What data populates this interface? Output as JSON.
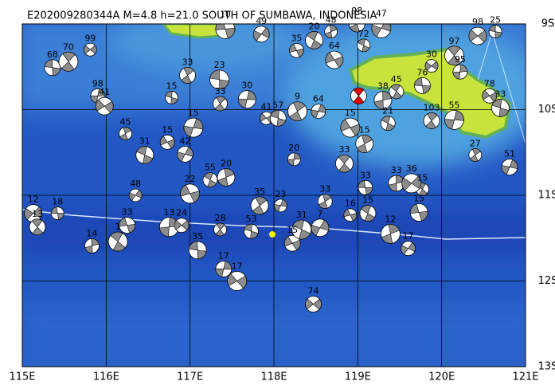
{
  "map": {
    "title": "E202009280344A  M=4.8  h=21.0  SOUTH OF SUMBAWA, INDONESIA",
    "lonlim": [
      115,
      121
    ],
    "latlim": [
      -9,
      -13
    ],
    "lon_ticks": [
      {
        "value": 115,
        "label": "115E"
      },
      {
        "value": 116,
        "label": "116E"
      },
      {
        "value": 117,
        "label": "117E"
      },
      {
        "value": 118,
        "label": "118E"
      },
      {
        "value": 119,
        "label": "119E"
      },
      {
        "value": 120,
        "label": "120E"
      },
      {
        "value": 121,
        "label": "121E"
      }
    ],
    "lat_ticks": [
      {
        "value": -9,
        "label": "9S"
      },
      {
        "value": -10,
        "label": "10S"
      },
      {
        "value": -11,
        "label": "11S"
      },
      {
        "value": -12,
        "label": "12S"
      },
      {
        "value": -13,
        "label": "13S"
      }
    ],
    "main_event": {
      "lon": 119.01,
      "lat": -9.84
    },
    "events": [
      {
        "lon": 115.81,
        "lat": -9.3,
        "depth": "99"
      },
      {
        "lon": 115.36,
        "lat": -9.51,
        "depth": "68"
      },
      {
        "lon": 115.55,
        "lat": -9.44,
        "depth": "70"
      },
      {
        "lon": 115.9,
        "lat": -9.84,
        "depth": "98"
      },
      {
        "lon": 115.98,
        "lat": -9.96,
        "depth": "41"
      },
      {
        "lon": 116.78,
        "lat": -9.86,
        "depth": "15"
      },
      {
        "lon": 116.97,
        "lat": -9.6,
        "depth": "33"
      },
      {
        "lon": 117.04,
        "lat": -10.21,
        "depth": "15"
      },
      {
        "lon": 116.73,
        "lat": -10.38,
        "depth": "15"
      },
      {
        "lon": 116.46,
        "lat": -10.53,
        "depth": "31"
      },
      {
        "lon": 116.23,
        "lat": -10.28,
        "depth": "45"
      },
      {
        "lon": 116.94,
        "lat": -10.52,
        "depth": "42"
      },
      {
        "lon": 117.0,
        "lat": -10.98,
        "depth": "22"
      },
      {
        "lon": 117.24,
        "lat": -10.82,
        "depth": "55"
      },
      {
        "lon": 117.43,
        "lat": -10.79,
        "depth": "20"
      },
      {
        "lon": 116.35,
        "lat": -11.0,
        "depth": "48"
      },
      {
        "lon": 116.25,
        "lat": -11.35,
        "depth": "33"
      },
      {
        "lon": 116.14,
        "lat": -11.54,
        "depth": "1"
      },
      {
        "lon": 115.83,
        "lat": -11.59,
        "depth": "14"
      },
      {
        "lon": 115.13,
        "lat": -11.21,
        "depth": "12"
      },
      {
        "lon": 115.42,
        "lat": -11.21,
        "depth": "18"
      },
      {
        "lon": 115.18,
        "lat": -11.37,
        "depth": "13"
      },
      {
        "lon": 116.75,
        "lat": -11.37,
        "depth": "13"
      },
      {
        "lon": 116.9,
        "lat": -11.35,
        "depth": "24"
      },
      {
        "lon": 117.09,
        "lat": -11.64,
        "depth": "35"
      },
      {
        "lon": 117.36,
        "lat": -11.4,
        "depth": "28"
      },
      {
        "lon": 117.4,
        "lat": -11.86,
        "depth": "17"
      },
      {
        "lon": 117.56,
        "lat": -12.0,
        "depth": "17"
      },
      {
        "lon": 117.73,
        "lat": -11.42,
        "depth": "53"
      },
      {
        "lon": 117.83,
        "lat": -11.12,
        "depth": "35"
      },
      {
        "lon": 118.08,
        "lat": -11.12,
        "depth": "23"
      },
      {
        "lon": 118.22,
        "lat": -11.56,
        "depth": "15"
      },
      {
        "lon": 118.33,
        "lat": -11.4,
        "depth": "31"
      },
      {
        "lon": 118.61,
        "lat": -11.07,
        "depth": "33"
      },
      {
        "lon": 118.55,
        "lat": -11.38,
        "depth": "7"
      },
      {
        "lon": 118.91,
        "lat": -11.23,
        "depth": "16"
      },
      {
        "lon": 119.12,
        "lat": -11.21,
        "depth": "15"
      },
      {
        "lon": 119.39,
        "lat": -11.45,
        "depth": "12"
      },
      {
        "lon": 119.6,
        "lat": -11.62,
        "depth": "17"
      },
      {
        "lon": 119.73,
        "lat": -11.2,
        "depth": "15"
      },
      {
        "lon": 119.77,
        "lat": -10.93,
        "depth": "15"
      },
      {
        "lon": 119.46,
        "lat": -10.86,
        "depth": "33"
      },
      {
        "lon": 119.64,
        "lat": -10.86,
        "depth": "36"
      },
      {
        "lon": 119.09,
        "lat": -10.91,
        "depth": "33"
      },
      {
        "lon": 118.84,
        "lat": -10.63,
        "depth": "33"
      },
      {
        "lon": 118.24,
        "lat": -10.58,
        "depth": "20"
      },
      {
        "lon": 118.47,
        "lat": -12.27,
        "depth": "74"
      },
      {
        "lon": 117.35,
        "lat": -9.65,
        "depth": "23"
      },
      {
        "lon": 117.36,
        "lat": -9.93,
        "depth": "33"
      },
      {
        "lon": 117.68,
        "lat": -9.88,
        "depth": "30"
      },
      {
        "lon": 117.91,
        "lat": -10.1,
        "depth": "41"
      },
      {
        "lon": 118.05,
        "lat": -10.1,
        "depth": "57"
      },
      {
        "lon": 118.28,
        "lat": -10.02,
        "depth": "9"
      },
      {
        "lon": 118.53,
        "lat": -10.02,
        "depth": "64"
      },
      {
        "lon": 118.72,
        "lat": -9.42,
        "depth": "64"
      },
      {
        "lon": 119.07,
        "lat": -9.25,
        "depth": "72"
      },
      {
        "lon": 118.99,
        "lat": -9.0,
        "depth": "98"
      },
      {
        "lon": 119.28,
        "lat": -9.05,
        "depth": "47"
      },
      {
        "lon": 118.27,
        "lat": -9.31,
        "depth": "35"
      },
      {
        "lon": 118.48,
        "lat": -9.19,
        "depth": "20"
      },
      {
        "lon": 118.68,
        "lat": -9.09,
        "depth": "48"
      },
      {
        "lon": 117.85,
        "lat": -9.12,
        "depth": "49"
      },
      {
        "lon": 117.42,
        "lat": -9.06,
        "depth": "10"
      },
      {
        "lon": 119.46,
        "lat": -9.79,
        "depth": "45"
      },
      {
        "lon": 119.3,
        "lat": -9.89,
        "depth": "38"
      },
      {
        "lon": 119.88,
        "lat": -9.49,
        "depth": "30"
      },
      {
        "lon": 119.77,
        "lat": -9.72,
        "depth": "76"
      },
      {
        "lon": 120.15,
        "lat": -9.37,
        "depth": "97"
      },
      {
        "lon": 120.22,
        "lat": -9.56,
        "depth": "95"
      },
      {
        "lon": 120.43,
        "lat": -9.14,
        "depth": "98"
      },
      {
        "lon": 120.64,
        "lat": -9.09,
        "depth": "25"
      },
      {
        "lon": 119.88,
        "lat": -10.13,
        "depth": "103"
      },
      {
        "lon": 120.15,
        "lat": -10.12,
        "depth": "55"
      },
      {
        "lon": 120.57,
        "lat": -9.84,
        "depth": "78"
      },
      {
        "lon": 120.7,
        "lat": -9.98,
        "depth": "33"
      },
      {
        "lon": 120.4,
        "lat": -10.53,
        "depth": "27"
      },
      {
        "lon": 120.81,
        "lat": -10.67,
        "depth": "51"
      },
      {
        "lon": 118.91,
        "lat": -10.21,
        "depth": "15"
      },
      {
        "lon": 119.36,
        "lat": -10.16,
        "depth": "21"
      },
      {
        "lon": 119.08,
        "lat": -10.4,
        "depth": "15"
      }
    ]
  }
}
